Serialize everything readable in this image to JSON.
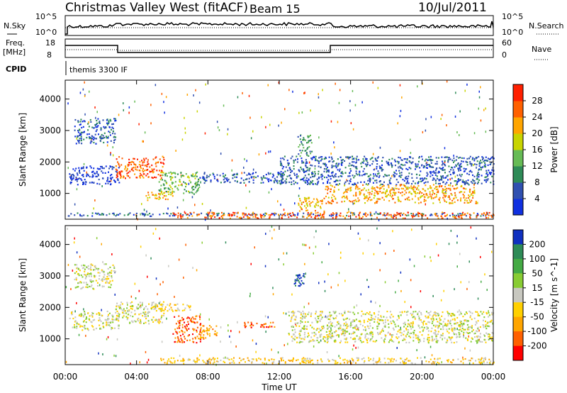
{
  "header": {
    "site": "Christmas Valley West (fitACF)",
    "beam": "Beam 15",
    "date": "10/Jul/2011"
  },
  "strips": {
    "nsky_label": "N.Sky",
    "nsearch_label": "N.Search",
    "nsky_ticks": [
      "10^5",
      "10^0"
    ],
    "nsearch_ticks": [
      "10^5",
      "10^0"
    ],
    "freq_label_1": "Freq.",
    "freq_label_2": "[MHz]",
    "freq_ticks": [
      "18",
      "8"
    ],
    "nave_label": "Nave",
    "nave_ticks": [
      "60",
      "0"
    ],
    "cpid_label": "CPID",
    "cpid_value": "themis 3300 IF"
  },
  "chart_data": [
    {
      "type": "heatmap",
      "title": "Power",
      "ylabel": "Slant Range [km]",
      "xlabel": "Time UT",
      "xlim": [
        0,
        24
      ],
      "ylim": [
        180,
        4600
      ],
      "xticks": [
        "00:00",
        "04:00",
        "08:00",
        "12:00",
        "16:00",
        "20:00",
        "00:00"
      ],
      "yticks": [
        "1000",
        "2000",
        "3000",
        "4000"
      ],
      "colorbar": {
        "label": "Power [dB]",
        "ticks": [
          "4",
          "8",
          "12",
          "16",
          "20",
          "24",
          "28"
        ],
        "colors": [
          "#1030e0",
          "#3050b0",
          "#2e8b57",
          "#66bb55",
          "#c8d400",
          "#ffa500",
          "#ff6000",
          "#ff2000"
        ]
      },
      "regions": [
        {
          "t0": 0.1,
          "t1": 24,
          "r0": 300,
          "r1": 400,
          "level": 1
        },
        {
          "t0": 0.2,
          "t1": 3.0,
          "r0": 1300,
          "r1": 1900,
          "level": 0
        },
        {
          "t0": 0.5,
          "t1": 2.8,
          "r0": 2600,
          "r1": 3400,
          "level": 1
        },
        {
          "t0": 2.8,
          "t1": 5.5,
          "r0": 1500,
          "r1": 2200,
          "level": 6
        },
        {
          "t0": 4.5,
          "t1": 6.0,
          "r0": 800,
          "r1": 1100,
          "level": 5
        },
        {
          "t0": 5.2,
          "t1": 7.5,
          "r0": 1000,
          "r1": 1700,
          "level": 3
        },
        {
          "t0": 7.5,
          "t1": 12.3,
          "r0": 1350,
          "r1": 1700,
          "level": 1
        },
        {
          "t0": 12.0,
          "t1": 24,
          "r0": 1300,
          "r1": 2200,
          "level": 1
        },
        {
          "t0": 13.0,
          "t1": 13.8,
          "r0": 2200,
          "r1": 2900,
          "level": 2
        },
        {
          "t0": 13.0,
          "t1": 14.5,
          "r0": 450,
          "r1": 900,
          "level": 5
        },
        {
          "t0": 14.5,
          "t1": 23,
          "r0": 700,
          "r1": 1300,
          "level": 5
        },
        {
          "t0": 6.0,
          "t1": 24,
          "r0": 230,
          "r1": 420,
          "level": 6
        }
      ]
    },
    {
      "type": "heatmap",
      "title": "Velocity",
      "ylabel": "Slant Range [km]",
      "xlabel": "Time UT",
      "xlim": [
        0,
        24
      ],
      "ylim": [
        180,
        4600
      ],
      "xticks": [
        "00:00",
        "04:00",
        "08:00",
        "12:00",
        "16:00",
        "20:00",
        "00:00"
      ],
      "yticks": [
        "1000",
        "2000",
        "3000",
        "4000"
      ],
      "colorbar": {
        "label": "Velocity [m s^-1]",
        "ticks": [
          "200",
          "100",
          "50",
          "15",
          "-15",
          "-50",
          "-100",
          "-200"
        ],
        "colors": [
          "#1030c0",
          "#2e8b57",
          "#44aa44",
          "#88cc33",
          "#c8c8c0",
          "#ffd000",
          "#ffa500",
          "#ff6000",
          "#ff0000"
        ]
      },
      "regions": [
        {
          "t0": 0.2,
          "t1": 3.0,
          "r0": 1300,
          "r1": 1900,
          "level": 4
        },
        {
          "t0": 0.5,
          "t1": 2.8,
          "r0": 2600,
          "r1": 3400,
          "level": 4
        },
        {
          "t0": 2.8,
          "t1": 5.5,
          "r0": 1500,
          "r1": 2200,
          "level": 4
        },
        {
          "t0": 6.0,
          "t1": 7.6,
          "r0": 900,
          "r1": 1750,
          "level": 7
        },
        {
          "t0": 7.5,
          "t1": 8.5,
          "r0": 1000,
          "r1": 1500,
          "level": 6
        },
        {
          "t0": 10.0,
          "t1": 12.0,
          "r0": 1380,
          "r1": 1550,
          "level": 7
        },
        {
          "t0": 12.5,
          "t1": 24,
          "r0": 900,
          "r1": 1900,
          "level": 4
        },
        {
          "t0": 12.8,
          "t1": 13.4,
          "r0": 2700,
          "r1": 3100,
          "level": 0
        },
        {
          "t0": 5.0,
          "t1": 24,
          "r0": 230,
          "r1": 420,
          "level": 5
        },
        {
          "t0": 5.0,
          "t1": 7.0,
          "r0": 1900,
          "r1": 2150,
          "level": 5
        }
      ]
    }
  ]
}
